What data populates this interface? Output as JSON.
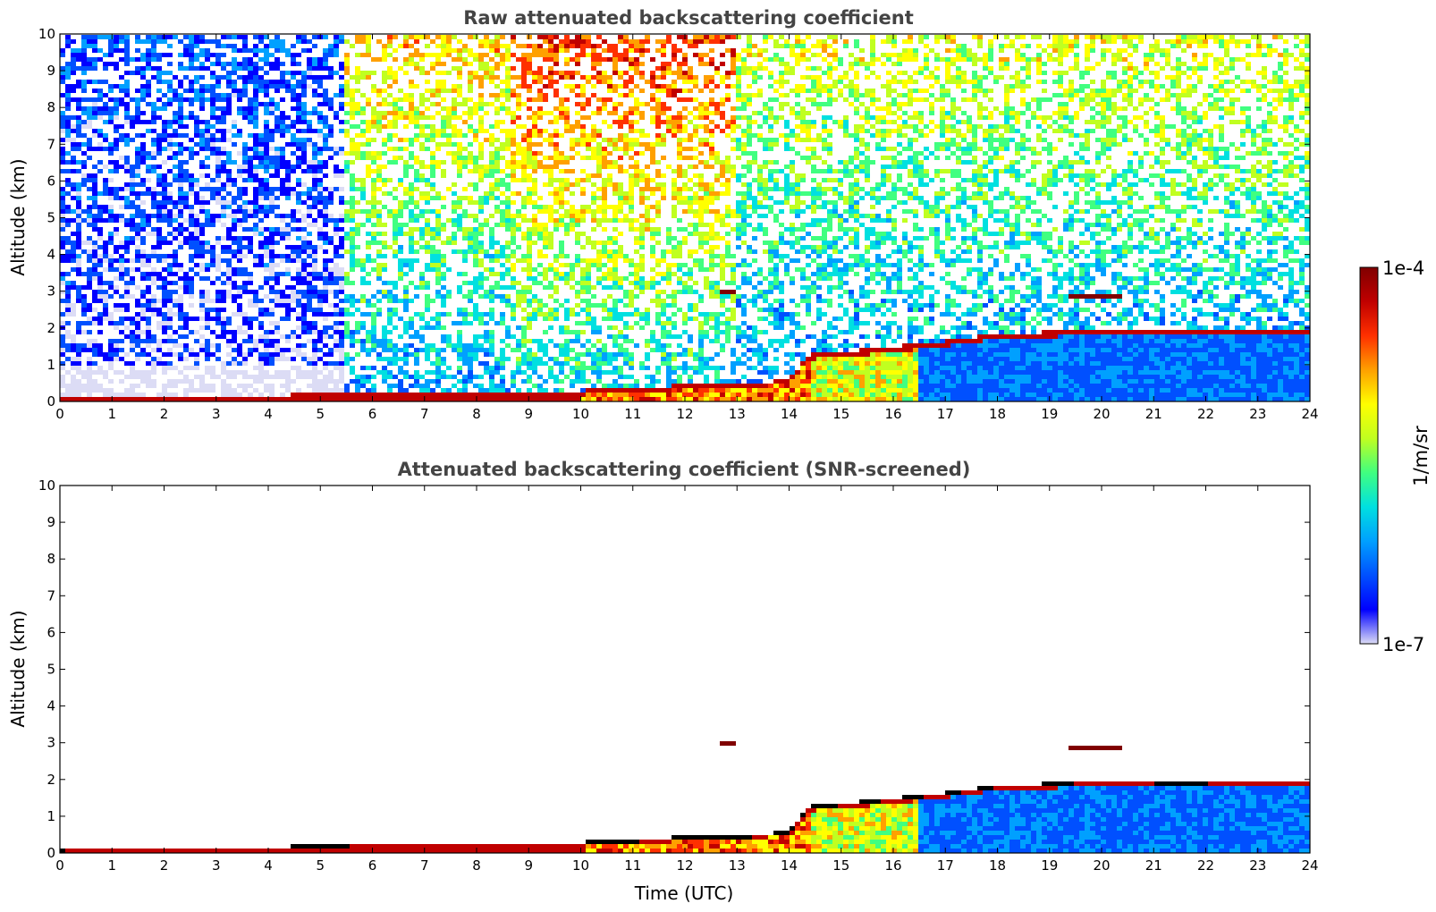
{
  "chart_data": [
    {
      "type": "heatmap",
      "title": "Raw attenuated backscattering coefficient",
      "xlabel": "",
      "ylabel": "Altitude (km)",
      "xlim": [
        0,
        24
      ],
      "ylim": [
        0,
        10
      ],
      "xticks": [
        0,
        1,
        2,
        3,
        4,
        5,
        6,
        7,
        8,
        9,
        10,
        11,
        12,
        13,
        14,
        15,
        16,
        17,
        18,
        19,
        20,
        21,
        22,
        23,
        24
      ],
      "yticks": [
        0,
        1,
        2,
        3,
        4,
        5,
        6,
        7,
        8,
        9,
        10
      ],
      "grid": false,
      "time_segments": [
        {
          "x": [
            0,
            5.5
          ],
          "upper_level": 0.25,
          "noise_density": 0.6
        },
        {
          "x": [
            5.5,
            8.7
          ],
          "upper_level": 0.45,
          "noise_density": 0.55
        },
        {
          "x": [
            8.7,
            13.0
          ],
          "upper_level": 0.55,
          "noise_density": 0.55
        },
        {
          "x": [
            13.0,
            24
          ],
          "upper_level": 0.4,
          "noise_density": 0.5
        }
      ],
      "boundary_layer_top_km": [
        {
          "x": 0,
          "y": 0.12
        },
        {
          "x": 2,
          "y": 0.15
        },
        {
          "x": 4,
          "y": 0.17
        },
        {
          "x": 5,
          "y": 0.2
        },
        {
          "x": 6,
          "y": 0.28
        },
        {
          "x": 8,
          "y": 0.25
        },
        {
          "x": 10,
          "y": 0.3
        },
        {
          "x": 11,
          "y": 0.35
        },
        {
          "x": 12,
          "y": 0.45
        },
        {
          "x": 13,
          "y": 0.45
        },
        {
          "x": 14,
          "y": 0.6
        },
        {
          "x": 14.4,
          "y": 1.3
        },
        {
          "x": 15,
          "y": 1.35
        },
        {
          "x": 16,
          "y": 1.5
        },
        {
          "x": 17,
          "y": 1.65
        },
        {
          "x": 18,
          "y": 1.85
        },
        {
          "x": 19,
          "y": 1.9
        },
        {
          "x": 20,
          "y": 2.0
        },
        {
          "x": 21,
          "y": 1.95
        },
        {
          "x": 22,
          "y": 1.95
        }
      ],
      "cloud_layers": [
        {
          "x": [
            19.4,
            20.4
          ],
          "y": 2.85
        },
        {
          "x": [
            12.7,
            13.0
          ],
          "y": 3.0
        }
      ]
    },
    {
      "type": "heatmap",
      "title": "Attenuated backscattering coefficient (SNR-screened)",
      "xlabel": "Time (UTC)",
      "ylabel": "Altitude (km)",
      "xlim": [
        0,
        24
      ],
      "ylim": [
        0,
        10
      ],
      "xticks": [
        0,
        1,
        2,
        3,
        4,
        5,
        6,
        7,
        8,
        9,
        10,
        11,
        12,
        13,
        14,
        15,
        16,
        17,
        18,
        19,
        20,
        21,
        22,
        23,
        24
      ],
      "yticks": [
        0,
        1,
        2,
        3,
        4,
        5,
        6,
        7,
        8,
        9,
        10
      ],
      "grid": false
    }
  ],
  "colorbar": {
    "label": "1/m/sr",
    "min_label": "1e-7",
    "max_label": "1e-4",
    "colormap": [
      "#dcdcf5",
      "#0000ff",
      "#0050ff",
      "#00a0ff",
      "#00e0e0",
      "#40ff80",
      "#c0ff20",
      "#ffff00",
      "#ffa000",
      "#ff3000",
      "#c00000",
      "#800000"
    ]
  }
}
